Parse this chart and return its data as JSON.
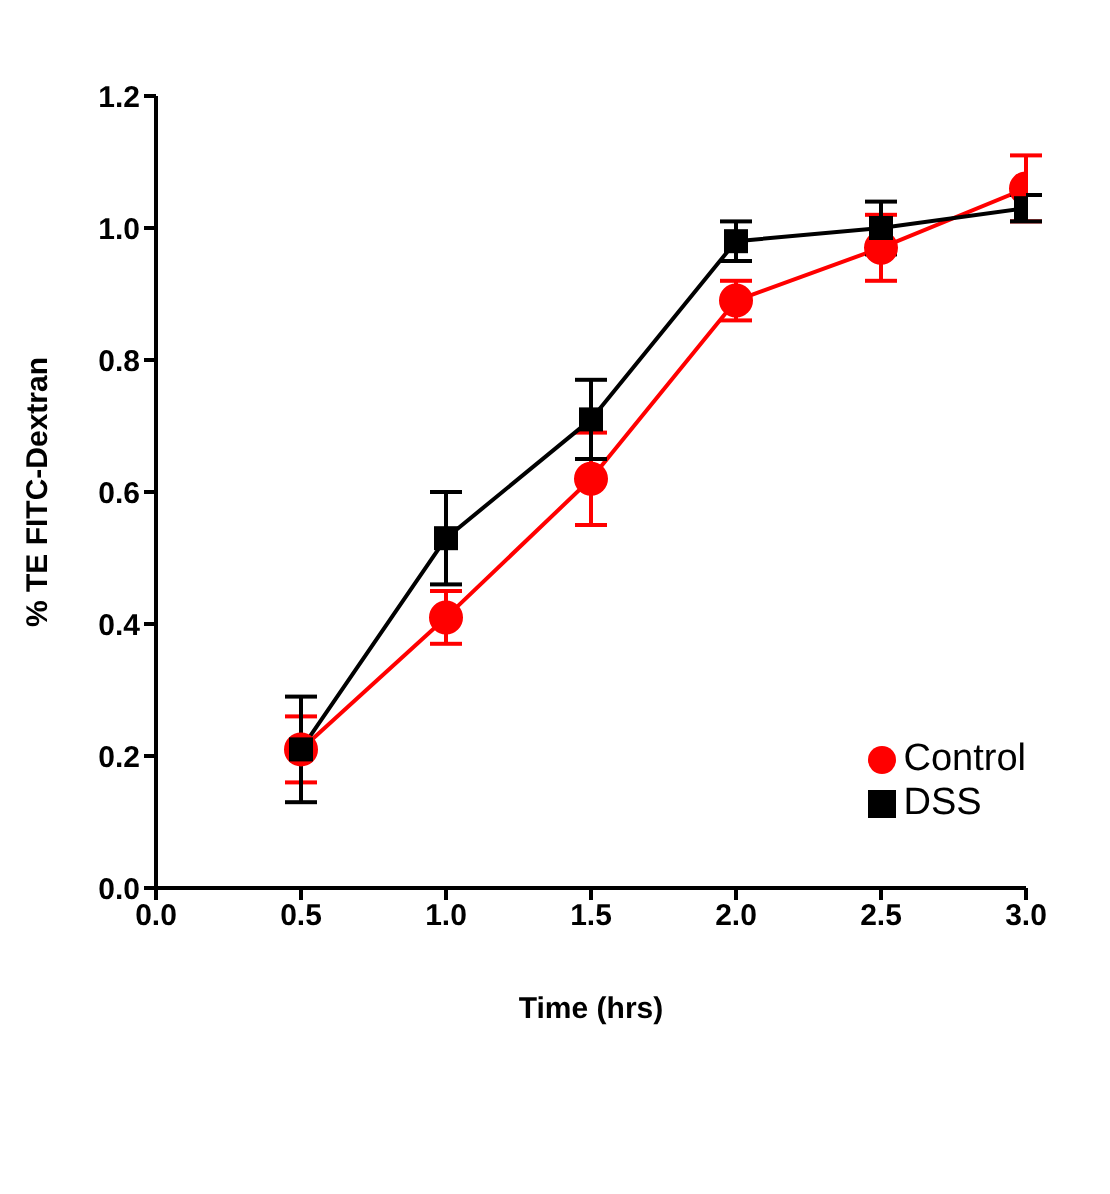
{
  "chart_data": {
    "type": "line",
    "xlabel": "Time (hrs)",
    "ylabel": "% TE FITC-Dextran",
    "x": [
      0.5,
      1.0,
      1.5,
      2.0,
      2.5,
      3.0
    ],
    "series": [
      {
        "name": "Control",
        "color": "#ff0000",
        "marker": "circle",
        "values": [
          0.21,
          0.41,
          0.62,
          0.89,
          0.97,
          1.06
        ],
        "errors": [
          0.05,
          0.04,
          0.07,
          0.03,
          0.05,
          0.05
        ]
      },
      {
        "name": "DSS",
        "color": "#000000",
        "marker": "square",
        "values": [
          0.21,
          0.53,
          0.71,
          0.98,
          1.0,
          1.03
        ],
        "errors": [
          0.08,
          0.07,
          0.06,
          0.03,
          0.04,
          0.02
        ]
      }
    ],
    "xlim": [
      0,
      3
    ],
    "xticks": [
      {
        "value": 0,
        "label": "0.0"
      },
      0.5,
      {
        "value": 1,
        "label": "1.0"
      },
      1.5,
      {
        "value": 2,
        "label": "2.0"
      },
      2.5,
      {
        "value": 3,
        "label": "3.0"
      }
    ],
    "ylim": [
      0,
      1.2
    ],
    "yticks": [
      {
        "value": 0,
        "label": "0.0"
      },
      0.2,
      0.4,
      0.6,
      0.8,
      {
        "value": 1,
        "label": "1.0"
      },
      1.2
    ],
    "grid": false,
    "legend": "bottom right",
    "line_style": "solid"
  }
}
